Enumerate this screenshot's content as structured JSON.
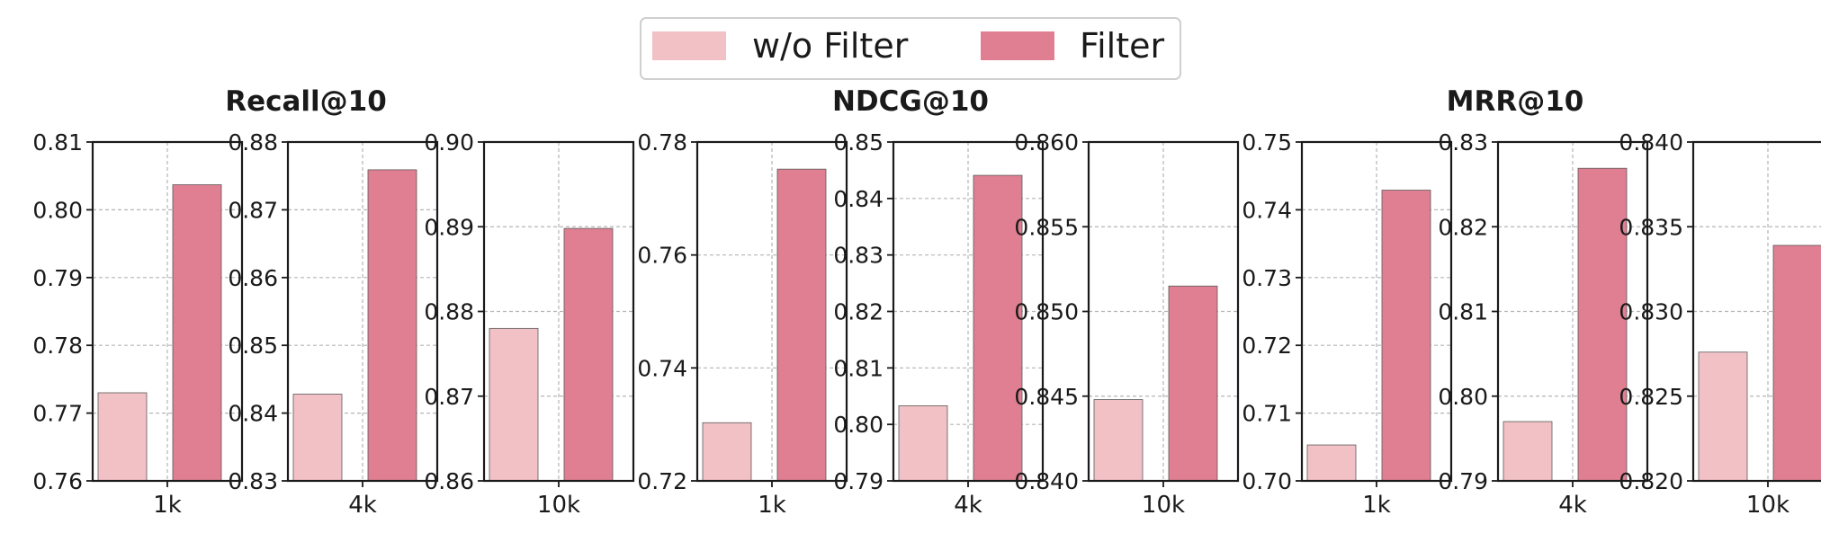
{
  "legend": {
    "items": [
      {
        "label": "w/o Filter",
        "color": "#f2c1c6"
      },
      {
        "label": "Filter",
        "color": "#e07f91"
      }
    ]
  },
  "chart_data": [
    {
      "type": "bar",
      "group_title": "Recall@10",
      "panels": [
        {
          "category": "1k",
          "ylim": [
            0.76,
            0.81
          ],
          "ticks": [
            "0.76",
            "0.77",
            "0.78",
            "0.79",
            "0.80",
            "0.81"
          ],
          "values": {
            "w/o Filter": 0.773,
            "Filter": 0.8037
          }
        },
        {
          "category": "4k",
          "ylim": [
            0.83,
            0.88
          ],
          "ticks": [
            "0.83",
            "0.84",
            "0.85",
            "0.86",
            "0.87",
            "0.88"
          ],
          "values": {
            "w/o Filter": 0.8428,
            "Filter": 0.8759
          }
        },
        {
          "category": "10k",
          "ylim": [
            0.86,
            0.9
          ],
          "ticks": [
            "0.86",
            "0.87",
            "0.88",
            "0.89",
            "0.90"
          ],
          "values": {
            "w/o Filter": 0.878,
            "Filter": 0.8898
          }
        }
      ]
    },
    {
      "type": "bar",
      "group_title": "NDCG@10",
      "panels": [
        {
          "category": "1k",
          "ylim": [
            0.72,
            0.78
          ],
          "ticks": [
            "0.72",
            "0.74",
            "0.76",
            "0.78"
          ],
          "values": {
            "w/o Filter": 0.7303,
            "Filter": 0.7752
          }
        },
        {
          "category": "4k",
          "ylim": [
            0.79,
            0.85
          ],
          "ticks": [
            "0.79",
            "0.80",
            "0.81",
            "0.82",
            "0.83",
            "0.84",
            "0.85"
          ],
          "values": {
            "w/o Filter": 0.8033,
            "Filter": 0.8441
          }
        },
        {
          "category": "10k",
          "ylim": [
            0.84,
            0.86
          ],
          "ticks": [
            "0.840",
            "0.845",
            "0.850",
            "0.855",
            "0.860"
          ],
          "values": {
            "w/o Filter": 0.8448,
            "Filter": 0.8515
          }
        }
      ]
    },
    {
      "type": "bar",
      "group_title": "MRR@10",
      "panels": [
        {
          "category": "1k",
          "ylim": [
            0.7,
            0.75
          ],
          "ticks": [
            "0.70",
            "0.71",
            "0.72",
            "0.73",
            "0.74",
            "0.75"
          ],
          "values": {
            "w/o Filter": 0.7053,
            "Filter": 0.7429
          }
        },
        {
          "category": "4k",
          "ylim": [
            0.79,
            0.83
          ],
          "ticks": [
            "0.79",
            "0.80",
            "0.81",
            "0.82",
            "0.83"
          ],
          "values": {
            "w/o Filter": 0.797,
            "Filter": 0.8269
          }
        },
        {
          "category": "10k",
          "ylim": [
            0.82,
            0.84
          ],
          "ticks": [
            "0.820",
            "0.825",
            "0.830",
            "0.835",
            "0.840"
          ],
          "values": {
            "w/o Filter": 0.8276,
            "Filter": 0.8339
          }
        }
      ]
    }
  ]
}
